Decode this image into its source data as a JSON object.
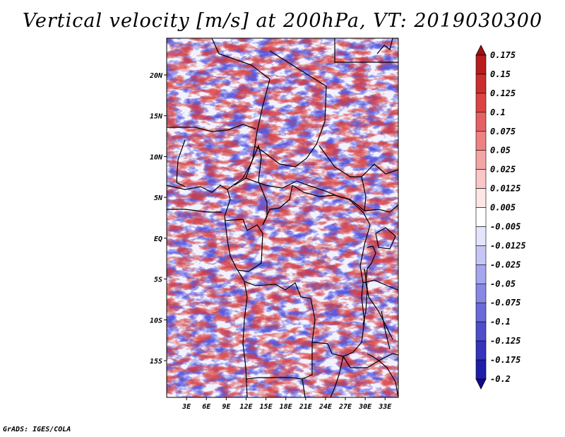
{
  "title": "Vertical velocity [m/s] at 200hPa, VT: 2019030300",
  "map": {
    "lat_ticks": [
      {
        "label": "20N",
        "value": 20
      },
      {
        "label": "15N",
        "value": 15
      },
      {
        "label": "10N",
        "value": 10
      },
      {
        "label": "5N",
        "value": 5
      },
      {
        "label": "EQ",
        "value": 0
      },
      {
        "label": "5S",
        "value": -5
      },
      {
        "label": "10S",
        "value": -10
      },
      {
        "label": "15S",
        "value": -15
      }
    ],
    "lon_ticks": [
      {
        "label": "3E",
        "value": 3
      },
      {
        "label": "6E",
        "value": 6
      },
      {
        "label": "9E",
        "value": 9
      },
      {
        "label": "12E",
        "value": 12
      },
      {
        "label": "15E",
        "value": 15
      },
      {
        "label": "18E",
        "value": 18
      },
      {
        "label": "21E",
        "value": 21
      },
      {
        "label": "24E",
        "value": 24
      },
      {
        "label": "27E",
        "value": 27
      },
      {
        "label": "30E",
        "value": 30
      },
      {
        "label": "33E",
        "value": 33
      }
    ],
    "lon_range": [
      0,
      35
    ],
    "lat_range": [
      -19.5,
      24.5
    ],
    "colors": {
      "upward": "#d03030",
      "downward": "#4a4ae0",
      "neutral": "#ffffff"
    }
  },
  "colorbar": {
    "levels": [
      "0.175",
      "0.15",
      "0.125",
      "0.1",
      "0.075",
      "0.05",
      "0.025",
      "0.0125",
      "0.005",
      "-0.005",
      "-0.0125",
      "-0.025",
      "-0.05",
      "-0.075",
      "-0.1",
      "-0.125",
      "-0.175",
      "-0.2"
    ],
    "colors": [
      "#a01010",
      "#b81c1c",
      "#cc2e2e",
      "#dc4444",
      "#e66262",
      "#ee8282",
      "#f5a4a4",
      "#fbc6c6",
      "#fde6e6",
      "#ffffff",
      "#e4e4fc",
      "#c6c6f6",
      "#a6a6ee",
      "#8888e4",
      "#6a6ad8",
      "#4e4ecc",
      "#3434bc",
      "#1e1ea8",
      "#100a90"
    ]
  },
  "credit": "GrADS: IGES/COLA"
}
